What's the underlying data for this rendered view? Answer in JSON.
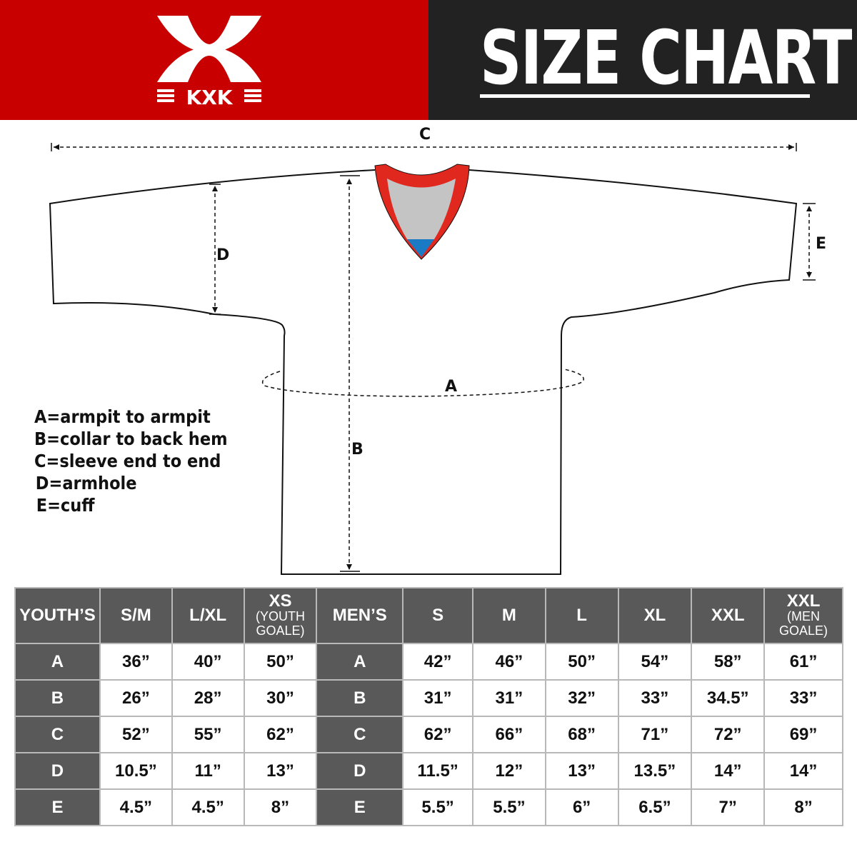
{
  "brand": {
    "name": "KXK",
    "color_primary": "#c80000",
    "color_dark": "#222222"
  },
  "header": {
    "title": "SIZE CHART"
  },
  "diagram": {
    "labels": {
      "a": "A",
      "b": "B",
      "c": "C",
      "d": "D",
      "e": "E"
    },
    "colors": {
      "collar": "#e0281e",
      "collar_inner": "#c4c4c4",
      "collar_tag": "#1a7ac4"
    }
  },
  "legend": [
    "A=armpit to armpit",
    "B=collar to back hem",
    "C=sleeve end to end",
    "D=armhole",
    "E=cuff"
  ],
  "table": {
    "youth_header": "YOUTH’S",
    "youth_sizes": [
      {
        "main": "S/M",
        "sub": ""
      },
      {
        "main": "L/XL",
        "sub": ""
      },
      {
        "main": "XS",
        "sub": "(YOUTH GOALE)"
      }
    ],
    "men_header": "MEN’S",
    "men_sizes": [
      {
        "main": "S",
        "sub": ""
      },
      {
        "main": "M",
        "sub": ""
      },
      {
        "main": "L",
        "sub": ""
      },
      {
        "main": "XL",
        "sub": ""
      },
      {
        "main": "XXL",
        "sub": ""
      },
      {
        "main": "XXL",
        "sub": "(MEN GOALE)"
      }
    ],
    "rows": [
      {
        "key": "A",
        "youth": [
          "36”",
          "40”",
          "50”"
        ],
        "men": [
          "42”",
          "46”",
          "50”",
          "54”",
          "58”",
          "61”"
        ]
      },
      {
        "key": "B",
        "youth": [
          "26”",
          "28”",
          "30”"
        ],
        "men": [
          "31”",
          "31”",
          "32”",
          "33”",
          "34.5”",
          "33”"
        ]
      },
      {
        "key": "C",
        "youth": [
          "52”",
          "55”",
          "62”"
        ],
        "men": [
          "62”",
          "66”",
          "68”",
          "71”",
          "72”",
          "69”"
        ]
      },
      {
        "key": "D",
        "youth": [
          "10.5”",
          "11”",
          "13”"
        ],
        "men": [
          "11.5”",
          "12”",
          "13”",
          "13.5”",
          "14”",
          "14”"
        ]
      },
      {
        "key": "E",
        "youth": [
          "4.5”",
          "4.5”",
          "8”"
        ],
        "men": [
          "5.5”",
          "5.5”",
          "6”",
          "6.5”",
          "7”",
          "8”"
        ]
      }
    ]
  }
}
